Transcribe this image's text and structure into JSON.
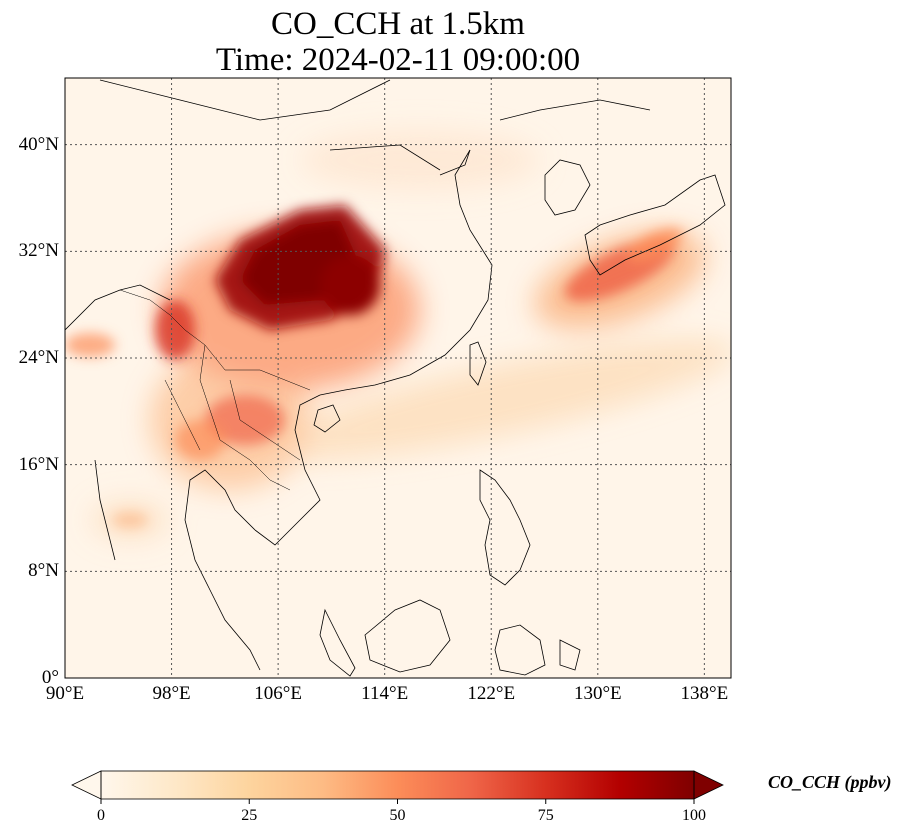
{
  "title_line1": "CO_CCH at 1.5km",
  "title_line2": "Time: 2024-02-11 09:00:00",
  "map": {
    "extent": {
      "lon": [
        90,
        140
      ],
      "lat": [
        0,
        45
      ]
    },
    "lon_ticks": [
      {
        "value": 90,
        "label": "90°E"
      },
      {
        "value": 98,
        "label": "98°E"
      },
      {
        "value": 106,
        "label": "106°E"
      },
      {
        "value": 114,
        "label": "114°E"
      },
      {
        "value": 122,
        "label": "122°E"
      },
      {
        "value": 130,
        "label": "130°E"
      },
      {
        "value": 138,
        "label": "138°E"
      }
    ],
    "lat_ticks": [
      {
        "value": 0,
        "label": "0°"
      },
      {
        "value": 8,
        "label": "8°N"
      },
      {
        "value": 16,
        "label": "16°N"
      },
      {
        "value": 24,
        "label": "24°N"
      },
      {
        "value": 32,
        "label": "32°N"
      },
      {
        "value": 40,
        "label": "40°N"
      }
    ],
    "gridlines": true,
    "colormap": "OrRd"
  },
  "colorbar": {
    "min": 0,
    "max": 100,
    "ticks": [
      {
        "value": 0,
        "label": "0"
      },
      {
        "value": 25,
        "label": "25"
      },
      {
        "value": 50,
        "label": "50"
      },
      {
        "value": 75,
        "label": "75"
      },
      {
        "value": 100,
        "label": "100"
      }
    ],
    "label": "CO_CCH (ppbv)",
    "extend": "both"
  }
}
